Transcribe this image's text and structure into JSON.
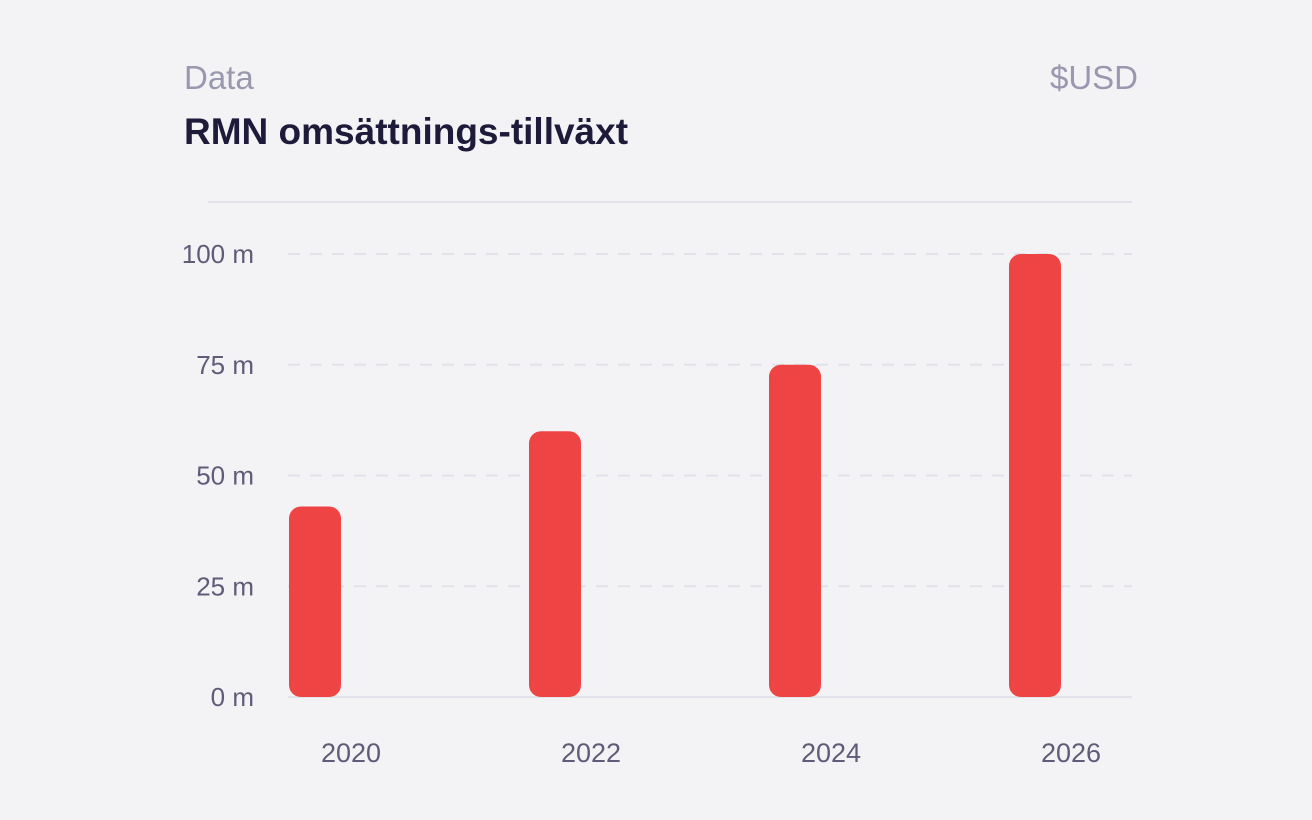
{
  "header": {
    "kicker": "Data",
    "title": "RMN omsättnings-tillväxt",
    "currency": "$USD"
  },
  "colors": {
    "bar": "#ef4444",
    "grid": "#e2e2ea",
    "text_muted": "#9a98ae",
    "text_dark": "#1d1a3a",
    "axis_text": "#5f5c78"
  },
  "chart_data": {
    "type": "bar",
    "title": "RMN omsättnings-tillväxt",
    "xlabel": "",
    "ylabel": "",
    "categories": [
      "2020",
      "2022",
      "2024",
      "2026"
    ],
    "values": [
      43,
      60,
      75,
      100
    ],
    "ylim": [
      0,
      100
    ],
    "yticks": [
      0,
      25,
      50,
      75,
      100
    ],
    "ytick_labels": [
      "0 m",
      "25 m",
      "50 m",
      "75 m",
      "100 m"
    ],
    "grid": true
  }
}
